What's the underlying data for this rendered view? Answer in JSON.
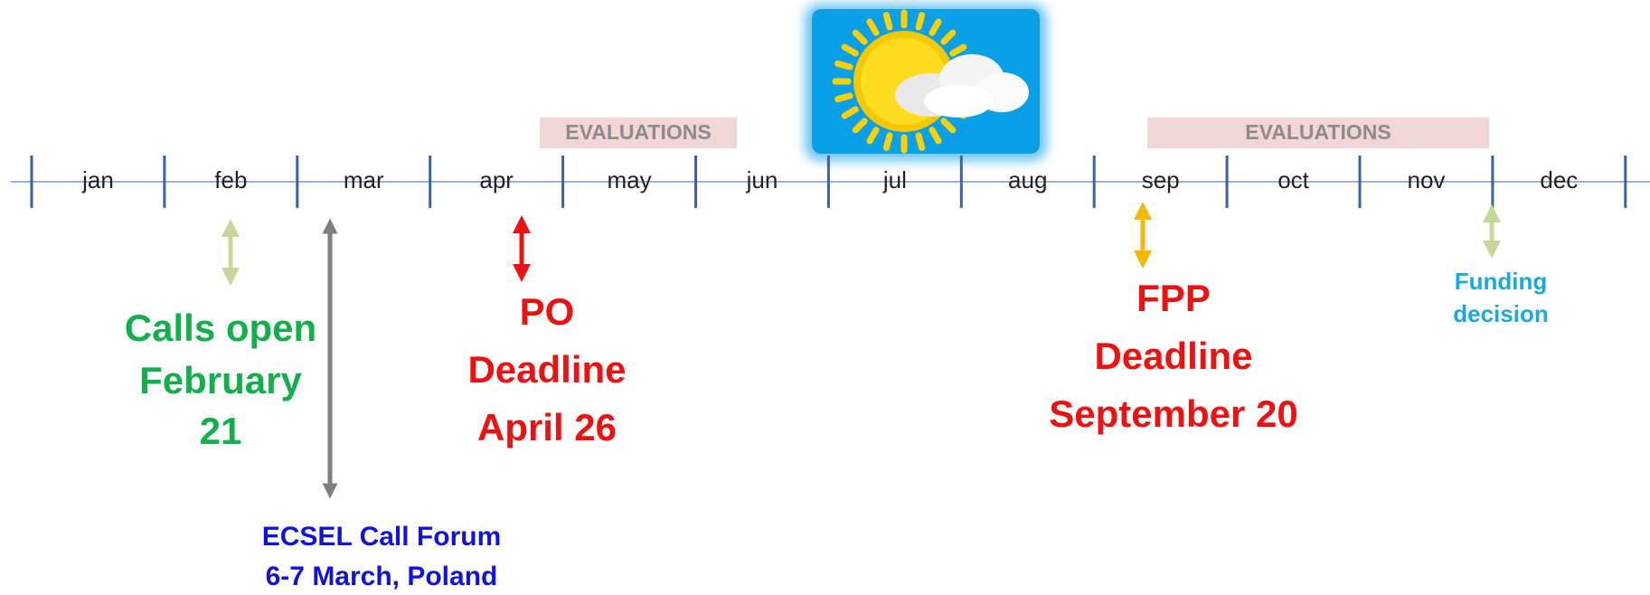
{
  "timeline": {
    "months": [
      "jan",
      "feb",
      "mar",
      "apr",
      "may",
      "jun",
      "jul",
      "aug",
      "sep",
      "oct",
      "nov",
      "dec"
    ],
    "evaluations": [
      "EVALUATIONS",
      "EVALUATIONS"
    ]
  },
  "events": {
    "calls_open": [
      "Calls open",
      "February",
      "21"
    ],
    "call_forum": [
      "ECSEL Call Forum",
      "6-7 March, Poland"
    ],
    "po_deadline": [
      "PO",
      "Deadline",
      "April 26"
    ],
    "fpp_deadline": [
      "FPP",
      "Deadline",
      "September 20"
    ],
    "funding_decision": [
      "Funding",
      "decision"
    ]
  }
}
